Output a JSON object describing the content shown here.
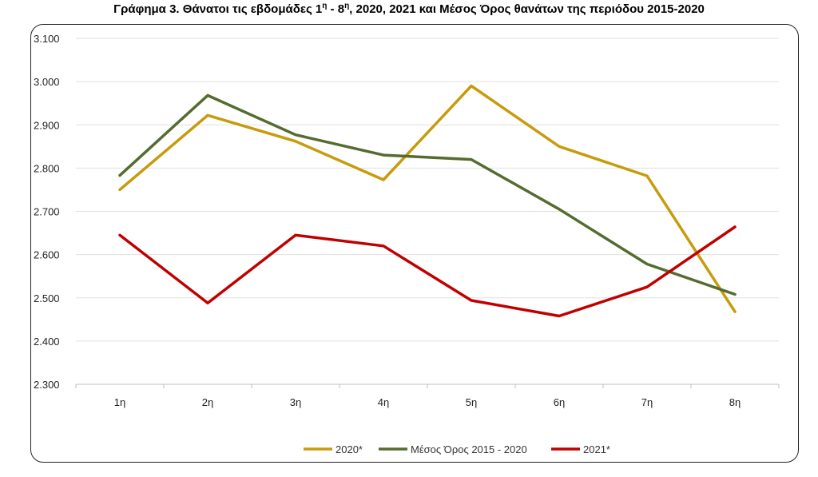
{
  "chart_data": {
    "type": "line",
    "title": "Γράφημα 3. Θάνατοι τις εβδομάδες 1",
    "title_sup1": "η",
    "title_mid": " - 8",
    "title_sup2": "η",
    "title_end": ", 2020, 2021 και Μέσος Όρος θανάτων της περιόδου 2015-2020",
    "categories": [
      "1η",
      "2η",
      "3η",
      "4η",
      "5η",
      "6η",
      "7η",
      "8η"
    ],
    "y_ticks": [
      "2.300",
      "2.400",
      "2.500",
      "2.600",
      "2.700",
      "2.800",
      "2.900",
      "3.000",
      "3.100"
    ],
    "ylim": [
      2300,
      3100
    ],
    "grid": true,
    "legend_position": "bottom",
    "series": [
      {
        "name": "2020*",
        "color": "#C89B0C",
        "values": [
          2750,
          2922,
          2862,
          2773,
          2990,
          2850,
          2782,
          2468
        ]
      },
      {
        "name": "Μέσος Όρος 2015 - 2020",
        "color": "#556B2F",
        "values": [
          2783,
          2968,
          2877,
          2830,
          2820,
          2705,
          2578,
          2508
        ]
      },
      {
        "name": "2021*",
        "color": "#C00000",
        "values": [
          2645,
          2488,
          2645,
          2620,
          2494,
          2458,
          2525,
          2664
        ]
      }
    ]
  }
}
